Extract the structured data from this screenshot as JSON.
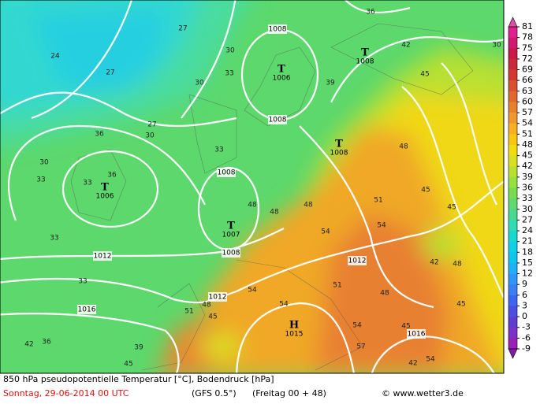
{
  "footer": {
    "title": "850 hPa pseudopotentielle Temperatur [°C], Bodendruck [hPa]",
    "date": "Sonntag, 29-06-2014  00 UTC",
    "model": "(GFS 0.5°)",
    "forecast": "(Freitag 00 + 48)",
    "copyright": "© www.wetter3.de"
  },
  "colorbar": {
    "ticks": [
      81,
      78,
      75,
      72,
      69,
      66,
      63,
      60,
      57,
      54,
      51,
      48,
      45,
      42,
      39,
      36,
      33,
      30,
      27,
      24,
      21,
      18,
      15,
      12,
      9,
      6,
      3,
      0,
      -3,
      -6,
      -9
    ],
    "colors": [
      "#e02090",
      "#d01870",
      "#c81848",
      "#c82838",
      "#d03830",
      "#d85030",
      "#e06830",
      "#e88030",
      "#f09830",
      "#f8b020",
      "#f8c810",
      "#f0dc10",
      "#d8e020",
      "#b8e030",
      "#98e040",
      "#78dc50",
      "#60d870",
      "#48d890",
      "#30dcb0",
      "#18d8d0",
      "#10d0e8",
      "#10c4f0",
      "#20b0f8",
      "#2e98f8",
      "#3a80f5",
      "#3d66f0",
      "#4b4ee0",
      "#5c3dd0",
      "#7a32c4",
      "#9a1fb6"
    ],
    "top_color": "#e050a0",
    "bottom_color": "#8a1aa6"
  },
  "pressure_centers": [
    {
      "symbol": "T",
      "value": "1006"
    },
    {
      "symbol": "T",
      "value": "1008"
    },
    {
      "symbol": "T",
      "value": "1008"
    },
    {
      "symbol": "T",
      "value": "1006"
    },
    {
      "symbol": "T",
      "value": "1007"
    },
    {
      "symbol": "H",
      "value": "1015"
    }
  ],
  "isobar_labels": [
    "1008",
    "1008",
    "1008",
    "1008",
    "1012",
    "1012",
    "1012",
    "1016",
    "1016"
  ],
  "isotherm_labels": [
    "24",
    "27",
    "27",
    "30",
    "33",
    "30",
    "27",
    "30",
    "33",
    "36",
    "36",
    "33",
    "30",
    "33",
    "33",
    "33",
    "36",
    "42",
    "39",
    "45",
    "48",
    "48",
    "48",
    "51",
    "48",
    "45",
    "39",
    "42",
    "36",
    "54",
    "51",
    "54",
    "54",
    "51",
    "48",
    "45",
    "57",
    "54",
    "48",
    "42",
    "48",
    "45",
    "45",
    "45",
    "54",
    "42",
    "45",
    "30",
    "54"
  ]
}
